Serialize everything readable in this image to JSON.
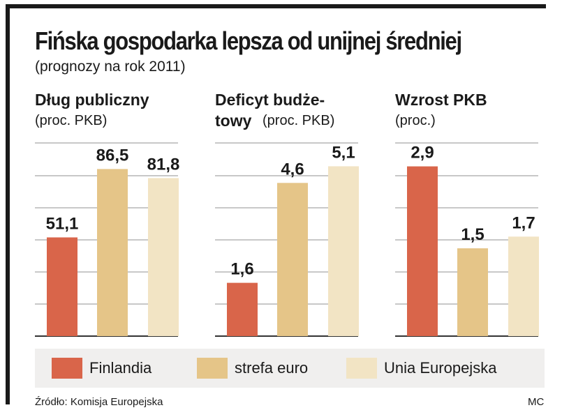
{
  "title": "Fińska gospodarka lepsza od unijnej średniej",
  "subtitle": "(prognozy na rok 2011)",
  "source": "Źródło: Komisja Europejska",
  "author": "MC",
  "legend": [
    {
      "label": "Finlandia",
      "color": "#d9654a"
    },
    {
      "label": "strefa euro",
      "color": "#e5c588"
    },
    {
      "label": "Unia Europejska",
      "color": "#f2e4c4"
    }
  ],
  "chart_data": [
    {
      "type": "bar",
      "title": "Dług publiczny",
      "title_line2": "",
      "unit": "(proc. PKB)",
      "categories": [
        "Finlandia",
        "strefa euro",
        "Unia Europejska"
      ],
      "values": [
        51.1,
        86.5,
        81.8
      ],
      "labels": [
        "51,1",
        "86,5",
        "81,8"
      ],
      "ylim": [
        0,
        100
      ]
    },
    {
      "type": "bar",
      "title": "Deficyt budże-",
      "title_line2": "towy",
      "unit": "(proc. PKB)",
      "categories": [
        "Finlandia",
        "strefa euro",
        "Unia Europejska"
      ],
      "values": [
        1.6,
        4.6,
        5.1
      ],
      "labels": [
        "1,6",
        "4,6",
        "5,1"
      ],
      "ylim": [
        0,
        5.8
      ]
    },
    {
      "type": "bar",
      "title": "Wzrost PKB",
      "title_line2": "",
      "unit": "(proc.)",
      "categories": [
        "Finlandia",
        "strefa euro",
        "Unia Europejska"
      ],
      "values": [
        2.9,
        1.5,
        1.7
      ],
      "labels": [
        "2,9",
        "1,5",
        "1,7"
      ],
      "ylim": [
        0,
        3.3
      ]
    }
  ]
}
